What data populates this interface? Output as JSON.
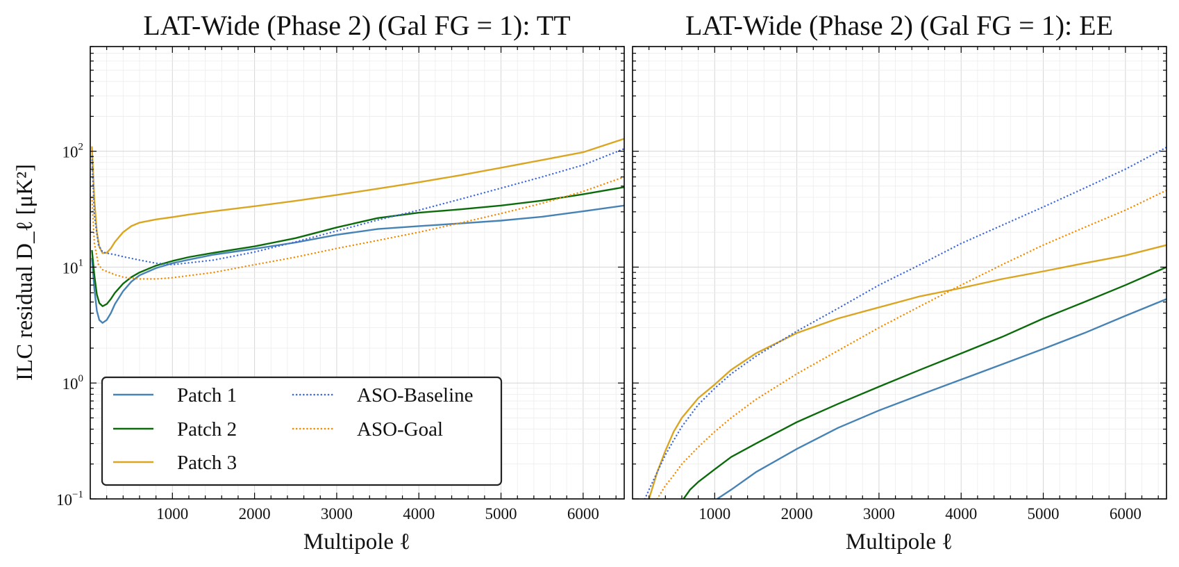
{
  "chart_data": [
    {
      "type": "line",
      "title": "LAT-Wide (Phase 2) (Gal FG = 1): TT",
      "xlabel": "Multipole ℓ",
      "ylabel": "ILC residual D_ℓ [μK²]",
      "xlim": [
        0,
        6500
      ],
      "ylim": [
        0.1,
        800
      ],
      "yscale": "log",
      "grid": true,
      "xticks": [
        1000,
        2000,
        3000,
        4000,
        5000,
        6000
      ],
      "yticks": [
        {
          "value": 0.1,
          "base": "10",
          "exp": "−1"
        },
        {
          "value": 1,
          "base": "10",
          "exp": "0"
        },
        {
          "value": 10,
          "base": "10",
          "exp": "1"
        },
        {
          "value": 100,
          "base": "10",
          "exp": "2"
        }
      ],
      "legend": {
        "placement": "lower-left",
        "entries": [
          "Patch 1",
          "Patch 2",
          "Patch 3",
          "ASO-Baseline",
          "ASO-Goal"
        ]
      },
      "series": [
        {
          "name": "Patch 1",
          "color": "#4682b4",
          "style": "solid",
          "x": [
            20,
            50,
            80,
            110,
            150,
            200,
            250,
            300,
            400,
            500,
            600,
            800,
            1000,
            1200,
            1500,
            2000,
            2500,
            3000,
            3500,
            4000,
            4500,
            5000,
            5500,
            6000,
            6500
          ],
          "y": [
            12,
            6.5,
            4.2,
            3.5,
            3.3,
            3.5,
            4.0,
            4.8,
            6.2,
            7.5,
            8.5,
            9.8,
            10.8,
            11.6,
            12.8,
            14.4,
            16.3,
            19.0,
            21.3,
            22.6,
            23.8,
            25.2,
            27.2,
            30.3,
            34
          ]
        },
        {
          "name": "Patch 2",
          "color": "#0b6b0b",
          "style": "solid",
          "x": [
            20,
            50,
            80,
            110,
            150,
            200,
            250,
            300,
            400,
            500,
            600,
            800,
            1000,
            1200,
            1500,
            2000,
            2500,
            3000,
            3500,
            4000,
            4500,
            5000,
            5500,
            6000,
            6500
          ],
          "y": [
            14,
            8.5,
            5.8,
            4.9,
            4.6,
            4.8,
            5.3,
            6.0,
            7.2,
            8.2,
            9.0,
            10.3,
            11.3,
            12.2,
            13.3,
            15.1,
            17.8,
            22.0,
            26.5,
            29.5,
            31.5,
            34.0,
            37.5,
            42.5,
            49
          ]
        },
        {
          "name": "Patch 3",
          "color": "#daa520",
          "style": "solid",
          "x": [
            20,
            50,
            80,
            110,
            150,
            200,
            250,
            300,
            400,
            500,
            600,
            800,
            1000,
            1200,
            1500,
            2000,
            2500,
            3000,
            3500,
            4000,
            4500,
            5000,
            5500,
            6000,
            6500
          ],
          "y": [
            110,
            38,
            20,
            15,
            13.2,
            13.3,
            14.5,
            16.5,
            20.0,
            22.6,
            24.2,
            25.8,
            27.0,
            28.4,
            30.3,
            33.5,
            37.3,
            42.0,
            47.5,
            54.0,
            62.0,
            72.0,
            84.0,
            98.0,
            128
          ]
        },
        {
          "name": "ASO-Baseline",
          "color": "#3f6ad8",
          "style": "dotted",
          "x": [
            20,
            50,
            100,
            150,
            200,
            300,
            400,
            600,
            800,
            1000,
            1500,
            2000,
            2500,
            3000,
            3500,
            4000,
            4500,
            5000,
            5500,
            6000,
            6500
          ],
          "y": [
            90,
            28,
            15.5,
            13.5,
            13.2,
            12.8,
            12.3,
            11.5,
            10.8,
            10.5,
            11.5,
            13.5,
            16.5,
            20.5,
            25.5,
            31.0,
            38.5,
            48.0,
            60.0,
            76.0,
            105
          ]
        },
        {
          "name": "ASO-Goal",
          "color": "#f28c00",
          "style": "dotted",
          "x": [
            20,
            50,
            100,
            150,
            200,
            300,
            400,
            600,
            800,
            1000,
            1500,
            2000,
            2500,
            3000,
            3500,
            4000,
            4500,
            5000,
            5500,
            6000,
            6500
          ],
          "y": [
            40,
            16,
            10.5,
            9.5,
            9.2,
            8.6,
            8.2,
            7.9,
            7.9,
            8.1,
            9.0,
            10.5,
            12.2,
            14.5,
            17.0,
            20.0,
            24.0,
            29.0,
            35.5,
            45.0,
            60
          ]
        }
      ]
    },
    {
      "type": "line",
      "title": "LAT-Wide (Phase 2) (Gal FG = 1): EE",
      "xlabel": "Multipole ℓ",
      "xlim": [
        0,
        6500
      ],
      "ylim": [
        0.1,
        800
      ],
      "yscale": "log",
      "grid": true,
      "xticks": [
        1000,
        2000,
        3000,
        4000,
        5000,
        6000
      ],
      "series": [
        {
          "name": "Patch 1",
          "color": "#4682b4",
          "style": "solid",
          "x": [
            1030,
            1200,
            1500,
            2000,
            2500,
            3000,
            3500,
            4000,
            4500,
            5000,
            5500,
            6000,
            6500
          ],
          "y": [
            0.1,
            0.12,
            0.17,
            0.27,
            0.41,
            0.58,
            0.79,
            1.07,
            1.45,
            1.97,
            2.7,
            3.8,
            5.3
          ]
        },
        {
          "name": "Patch 2",
          "color": "#0b6b0b",
          "style": "solid",
          "x": [
            620,
            700,
            800,
            1000,
            1200,
            1500,
            2000,
            2500,
            3000,
            3500,
            4000,
            4500,
            5000,
            5500,
            6000,
            6500
          ],
          "y": [
            0.1,
            0.12,
            0.14,
            0.18,
            0.23,
            0.3,
            0.46,
            0.66,
            0.93,
            1.3,
            1.8,
            2.5,
            3.6,
            5.0,
            7.0,
            10.0
          ]
        },
        {
          "name": "Patch 3",
          "color": "#daa520",
          "style": "solid",
          "x": [
            200,
            250,
            300,
            400,
            500,
            600,
            800,
            1000,
            1200,
            1500,
            2000,
            2500,
            3000,
            3500,
            4000,
            4500,
            5000,
            5500,
            6000,
            6500
          ],
          "y": [
            0.1,
            0.13,
            0.17,
            0.26,
            0.38,
            0.5,
            0.74,
            0.97,
            1.3,
            1.8,
            2.7,
            3.6,
            4.5,
            5.6,
            6.6,
            7.9,
            9.2,
            10.8,
            12.6,
            15.5
          ]
        },
        {
          "name": "ASO-Baseline",
          "color": "#3f6ad8",
          "style": "dotted",
          "x": [
            150,
            200,
            300,
            400,
            500,
            600,
            800,
            1000,
            1200,
            1500,
            2000,
            2500,
            3000,
            3500,
            4000,
            4500,
            5000,
            5500,
            6000,
            6500
          ],
          "y": [
            0.1,
            0.12,
            0.17,
            0.24,
            0.32,
            0.42,
            0.65,
            0.9,
            1.2,
            1.7,
            2.8,
            4.4,
            7.0,
            10.5,
            16.0,
            23.0,
            33.0,
            48.0,
            70.0,
            108
          ]
        },
        {
          "name": "ASO-Goal",
          "color": "#f28c00",
          "style": "dotted",
          "x": [
            300,
            400,
            500,
            600,
            800,
            1000,
            1200,
            1500,
            2000,
            2500,
            3000,
            3500,
            4000,
            4500,
            5000,
            5500,
            6000,
            6500
          ],
          "y": [
            0.1,
            0.13,
            0.16,
            0.2,
            0.28,
            0.38,
            0.5,
            0.72,
            1.2,
            1.9,
            3.0,
            4.6,
            7.0,
            10.5,
            15.5,
            22.0,
            31.0,
            46.0
          ]
        }
      ]
    }
  ]
}
